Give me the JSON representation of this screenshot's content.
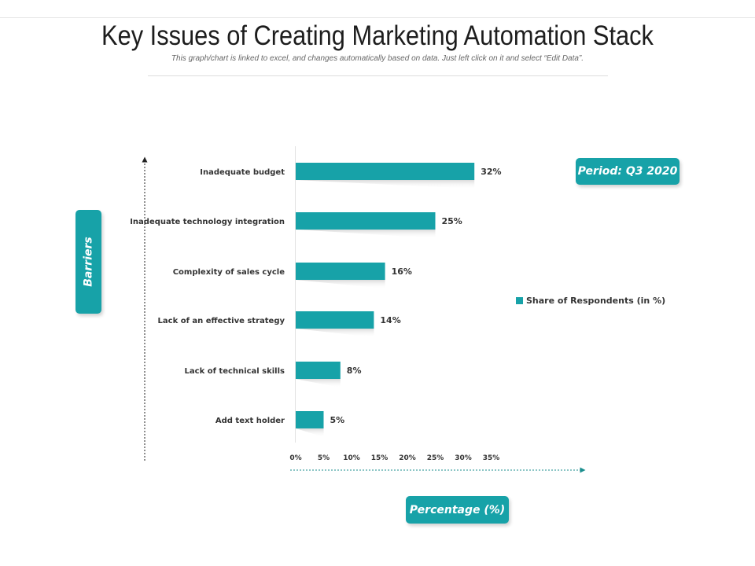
{
  "title": "Key Issues of Creating Marketing Automation Stack",
  "subtitle": "This graph/chart is linked to excel, and changes automatically based on data. Just left click on it and select “Edit Data”.",
  "period_badge": "Period: Q3 2020",
  "y_axis_pill": "Barriers",
  "x_axis_pill": "Percentage (%)",
  "colors": {
    "accent": "#17a2a8",
    "arrow": "#1b8e8e"
  },
  "chart_data": {
    "type": "bar",
    "orientation": "horizontal",
    "categories": [
      "Inadequate budget",
      "Inadequate technology integration",
      "Complexity of sales cycle",
      "Lack of an effective strategy",
      "Lack of technical skills",
      "Add text holder"
    ],
    "series": [
      {
        "name": "Share of Respondents (in %)",
        "values": [
          32,
          25,
          16,
          14,
          8,
          5
        ]
      }
    ],
    "value_labels": [
      "32%",
      "25%",
      "16%",
      "14%",
      "8%",
      "5%"
    ],
    "xticks": [
      "0%",
      "5%",
      "10%",
      "15%",
      "20%",
      "25%",
      "30%",
      "35%"
    ],
    "xlim": [
      0,
      35
    ],
    "legend_position": "right",
    "grid": false
  }
}
